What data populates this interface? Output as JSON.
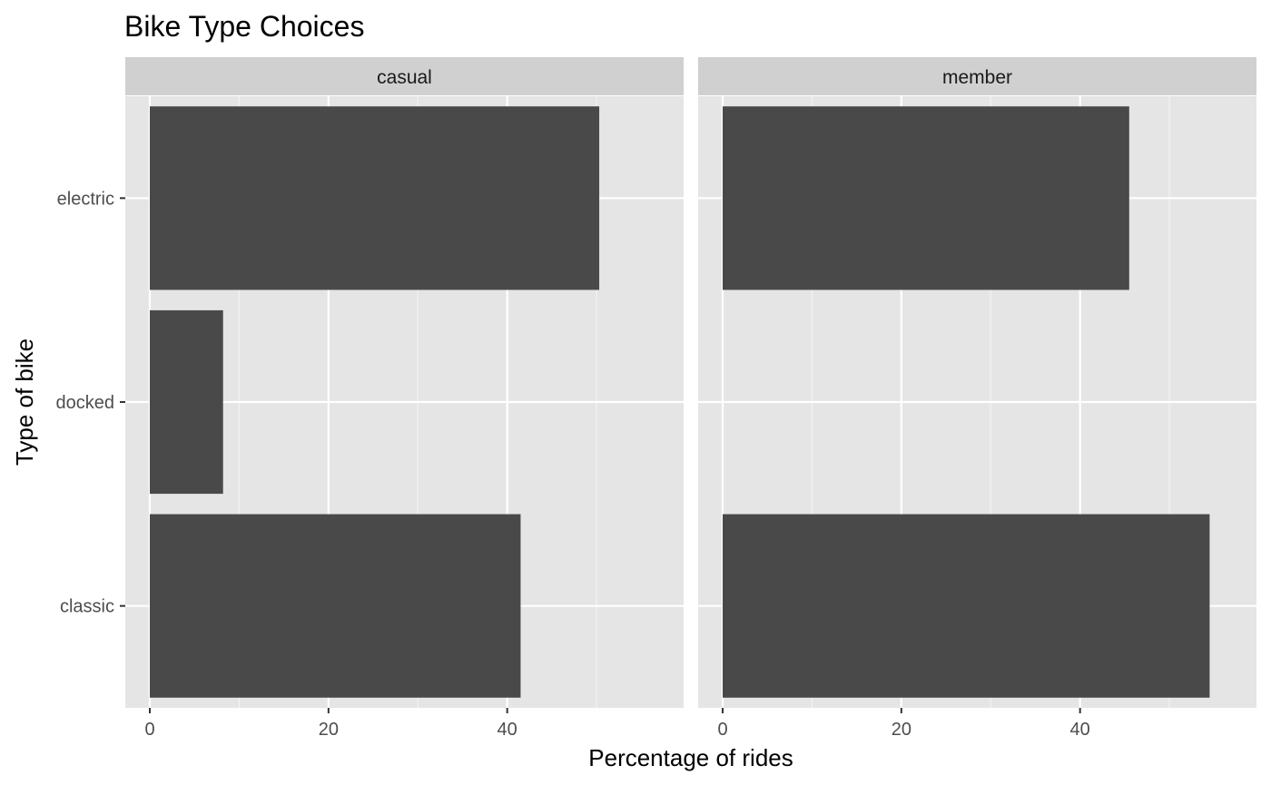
{
  "chart_data": {
    "type": "bar",
    "orientation": "horizontal",
    "title": "Bike Type Choices",
    "xlabel": "Percentage of rides",
    "ylabel": "Type of bike",
    "categories": [
      "electric",
      "docked",
      "classic"
    ],
    "xlim": [
      0,
      57
    ],
    "xticks": [
      0,
      20,
      40
    ],
    "grid": true,
    "legend": "none",
    "bar_color": "#494949",
    "panel_background": "#e5e5e5",
    "strip_background": "#d0d0d0",
    "panels": [
      {
        "name": "casual",
        "values": [
          50.3,
          8.2,
          41.5
        ]
      },
      {
        "name": "member",
        "values": [
          45.5,
          0,
          54.5
        ]
      }
    ]
  }
}
